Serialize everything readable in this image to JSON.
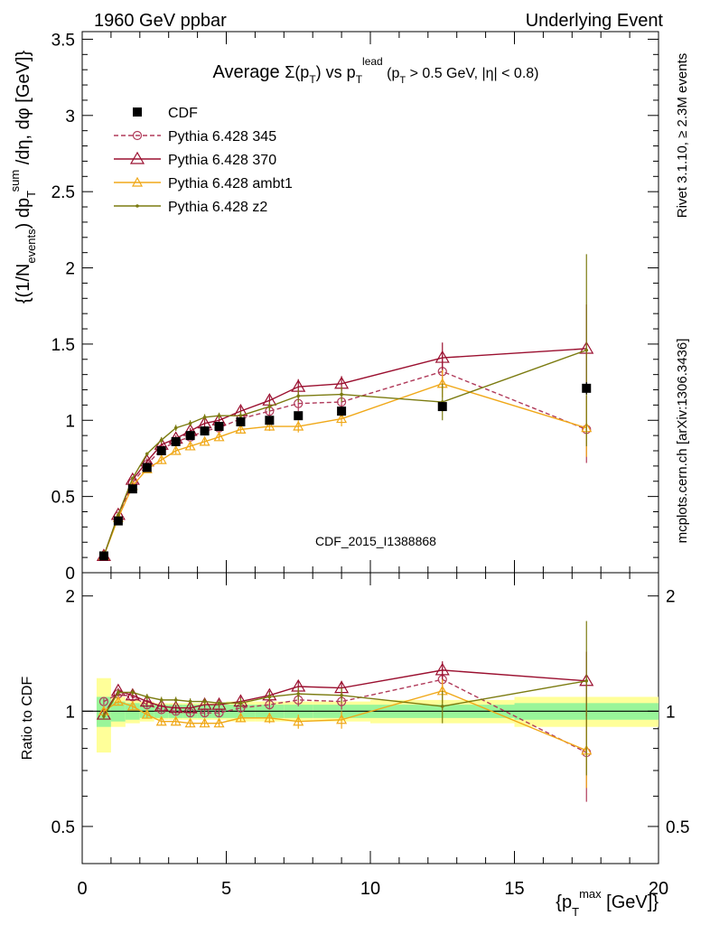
{
  "header": {
    "left": "1960 GeV ppbar",
    "right": "Underlying Event"
  },
  "side_labels": {
    "rivet": "Rivet 3.1.10, ≥ 2.3M events",
    "mcplots": "mcplots.cern.ch [arXiv:1306.3436]"
  },
  "chart_data": [
    {
      "type": "line",
      "panel": "main",
      "title": "Average Σ(p_T) vs p_T^lead (p_T > 0.5 GeV, |η| < 0.8)",
      "ylabel": "{(1/N_events) dp_T^sum/dη, dφ [GeV]}",
      "xlabel": "",
      "xlim": [
        0,
        20
      ],
      "ylim": [
        0,
        3.55
      ],
      "yticks": [
        "0",
        "0.5",
        "1",
        "1.5",
        "2",
        "2.5",
        "3",
        "3.5"
      ],
      "analysis_id": "CDF_2015_I1388868",
      "legend_position": "top-left",
      "series": [
        {
          "name": "CDF",
          "color": "#000000",
          "marker": "filled-square",
          "x": [
            0.75,
            1.25,
            1.75,
            2.25,
            2.75,
            3.25,
            3.75,
            4.25,
            4.75,
            5.5,
            6.5,
            7.5,
            9.0,
            12.5,
            17.5
          ],
          "y": [
            0.11,
            0.34,
            0.55,
            0.69,
            0.8,
            0.86,
            0.9,
            0.93,
            0.96,
            0.99,
            1.0,
            1.03,
            1.06,
            1.09,
            1.21
          ],
          "err": [
            0.01,
            0.02,
            0.02,
            0.02,
            0.02,
            0.02,
            0.02,
            0.02,
            0.02,
            0.02,
            0.02,
            0.02,
            0.03,
            0.03,
            0.04
          ]
        },
        {
          "name": "Pythia 6.428 345",
          "color": "#b03a5a",
          "marker": "open-circle",
          "dashed": true,
          "x": [
            0.75,
            1.25,
            1.75,
            2.25,
            2.75,
            3.25,
            3.75,
            4.25,
            4.75,
            5.5,
            6.5,
            7.5,
            9.0,
            12.5,
            17.5
          ],
          "y": [
            0.11,
            0.37,
            0.59,
            0.71,
            0.81,
            0.86,
            0.89,
            0.93,
            0.95,
            1.01,
            1.06,
            1.11,
            1.12,
            1.32,
            0.94
          ],
          "err": [
            0.01,
            0.01,
            0.01,
            0.02,
            0.02,
            0.02,
            0.02,
            0.03,
            0.03,
            0.03,
            0.04,
            0.05,
            0.06,
            0.11,
            0.22
          ]
        },
        {
          "name": "Pythia 6.428 370",
          "color": "#9b1030",
          "marker": "open-triangle",
          "x": [
            0.75,
            1.25,
            1.75,
            2.25,
            2.75,
            3.25,
            3.75,
            4.25,
            4.75,
            5.5,
            6.5,
            7.5,
            9.0,
            12.5,
            17.5
          ],
          "y": [
            0.11,
            0.38,
            0.61,
            0.73,
            0.84,
            0.88,
            0.93,
            0.98,
            1.0,
            1.06,
            1.13,
            1.22,
            1.24,
            1.41,
            1.47
          ],
          "err": [
            0.01,
            0.01,
            0.01,
            0.02,
            0.02,
            0.02,
            0.02,
            0.03,
            0.03,
            0.03,
            0.03,
            0.05,
            0.05,
            0.1,
            0.29
          ]
        },
        {
          "name": "Pythia 6.428 ambt1",
          "color": "#f0a818",
          "marker": "open-triangle-small",
          "x": [
            0.75,
            1.25,
            1.75,
            2.25,
            2.75,
            3.25,
            3.75,
            4.25,
            4.75,
            5.5,
            6.5,
            7.5,
            9.0,
            12.5,
            17.5
          ],
          "y": [
            0.11,
            0.36,
            0.57,
            0.68,
            0.74,
            0.8,
            0.83,
            0.86,
            0.89,
            0.94,
            0.96,
            0.96,
            1.01,
            1.24,
            0.95
          ],
          "err": [
            0.01,
            0.01,
            0.01,
            0.01,
            0.02,
            0.02,
            0.02,
            0.02,
            0.02,
            0.02,
            0.03,
            0.04,
            0.05,
            0.09,
            0.19
          ]
        },
        {
          "name": "Pythia 6.428 z2",
          "color": "#7b7b10",
          "marker": "dot",
          "x": [
            0.75,
            1.25,
            1.75,
            2.25,
            2.75,
            3.25,
            3.75,
            4.25,
            4.75,
            5.5,
            6.5,
            7.5,
            9.0,
            12.5,
            17.5
          ],
          "y": [
            0.11,
            0.38,
            0.62,
            0.78,
            0.87,
            0.95,
            0.98,
            1.02,
            1.03,
            1.03,
            1.09,
            1.16,
            1.17,
            1.12,
            1.46
          ],
          "err": [
            0.01,
            0.01,
            0.01,
            0.01,
            0.02,
            0.02,
            0.02,
            0.02,
            0.02,
            0.03,
            0.03,
            0.04,
            0.05,
            0.12,
            0.63
          ]
        }
      ]
    },
    {
      "type": "line",
      "panel": "ratio",
      "ylabel": "Ratio to CDF",
      "xlabel": "{p_T^max [GeV]}",
      "xlim": [
        0,
        20
      ],
      "ylim": [
        0.4,
        2.3
      ],
      "xticks": [
        "0",
        "5",
        "10",
        "15",
        "20"
      ],
      "yticks": [
        "0.5",
        "1",
        "2"
      ],
      "reference_band": {
        "bins": [
          [
            0.5,
            1.0
          ],
          [
            1.0,
            1.5
          ],
          [
            1.5,
            2.0
          ],
          [
            2.0,
            2.5
          ],
          [
            2.5,
            3.0
          ],
          [
            3.0,
            3.5
          ],
          [
            3.5,
            4.0
          ],
          [
            4.0,
            4.5
          ],
          [
            4.5,
            5.0
          ],
          [
            5.0,
            6.0
          ],
          [
            6.0,
            7.0
          ],
          [
            7.0,
            8.0
          ],
          [
            8.0,
            10.0
          ],
          [
            10.0,
            15.0
          ],
          [
            15.0,
            20.0
          ]
        ],
        "stat": [
          0.09,
          0.06,
          0.05,
          0.04,
          0.04,
          0.04,
          0.04,
          0.04,
          0.04,
          0.04,
          0.04,
          0.04,
          0.04,
          0.04,
          0.05
        ],
        "total": [
          0.22,
          0.09,
          0.07,
          0.06,
          0.05,
          0.05,
          0.05,
          0.05,
          0.05,
          0.06,
          0.06,
          0.06,
          0.06,
          0.07,
          0.09
        ]
      },
      "series": [
        {
          "name": "Pythia 6.428 345",
          "x": [
            0.75,
            1.25,
            1.75,
            2.25,
            2.75,
            3.25,
            3.75,
            4.25,
            4.75,
            5.5,
            6.5,
            7.5,
            9.0,
            12.5,
            17.5
          ],
          "y": [
            1.06,
            1.11,
            1.09,
            1.04,
            1.01,
            1.0,
            0.99,
            0.99,
            0.99,
            1.02,
            1.04,
            1.07,
            1.06,
            1.21,
            0.78
          ],
          "err": [
            0.02,
            0.02,
            0.02,
            0.02,
            0.02,
            0.02,
            0.02,
            0.02,
            0.02,
            0.03,
            0.03,
            0.04,
            0.05,
            0.09,
            0.2
          ]
        },
        {
          "name": "Pythia 6.428 370",
          "x": [
            0.75,
            1.25,
            1.75,
            2.25,
            2.75,
            3.25,
            3.75,
            4.25,
            4.75,
            5.5,
            6.5,
            7.5,
            9.0,
            12.5,
            17.5
          ],
          "y": [
            0.98,
            1.13,
            1.1,
            1.06,
            1.03,
            1.02,
            1.02,
            1.04,
            1.04,
            1.06,
            1.1,
            1.16,
            1.15,
            1.28,
            1.2
          ],
          "err": [
            0.02,
            0.02,
            0.02,
            0.02,
            0.02,
            0.02,
            0.02,
            0.02,
            0.02,
            0.03,
            0.03,
            0.04,
            0.05,
            0.07,
            0.23
          ]
        },
        {
          "name": "Pythia 6.428 ambt1",
          "x": [
            0.75,
            1.25,
            1.75,
            2.25,
            2.75,
            3.25,
            3.75,
            4.25,
            4.75,
            5.5,
            6.5,
            7.5,
            9.0,
            12.5,
            17.5
          ],
          "y": [
            1.0,
            1.06,
            1.03,
            0.98,
            0.94,
            0.94,
            0.93,
            0.93,
            0.93,
            0.96,
            0.96,
            0.94,
            0.95,
            1.13,
            0.79
          ],
          "err": [
            0.02,
            0.02,
            0.02,
            0.02,
            0.02,
            0.02,
            0.02,
            0.02,
            0.02,
            0.02,
            0.03,
            0.04,
            0.05,
            0.08,
            0.16
          ]
        },
        {
          "name": "Pythia 6.428 z2",
          "x": [
            0.75,
            1.25,
            1.75,
            2.25,
            2.75,
            3.25,
            3.75,
            4.25,
            4.75,
            5.5,
            6.5,
            7.5,
            9.0,
            12.5,
            17.5
          ],
          "y": [
            0.97,
            1.12,
            1.12,
            1.09,
            1.07,
            1.07,
            1.06,
            1.06,
            1.05,
            1.05,
            1.09,
            1.11,
            1.1,
            1.03,
            1.2
          ],
          "err": [
            0.02,
            0.02,
            0.02,
            0.02,
            0.02,
            0.02,
            0.02,
            0.02,
            0.02,
            0.03,
            0.03,
            0.04,
            0.05,
            0.1,
            0.52
          ]
        }
      ]
    }
  ]
}
